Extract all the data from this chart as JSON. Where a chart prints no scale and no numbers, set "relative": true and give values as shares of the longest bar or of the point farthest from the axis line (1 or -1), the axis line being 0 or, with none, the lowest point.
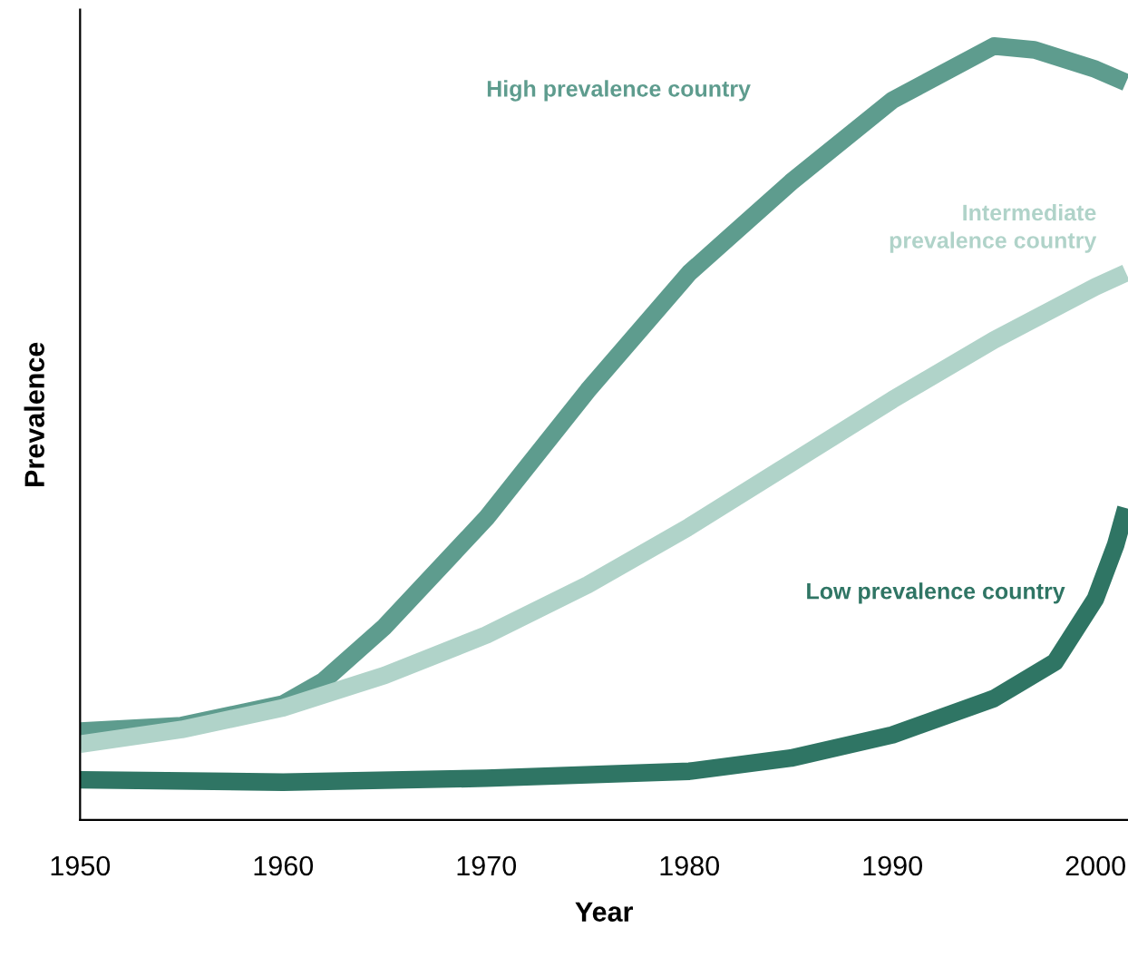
{
  "chart_data": {
    "type": "line",
    "relative": true,
    "xlabel": "Year",
    "ylabel": "Prevalence",
    "xlim": [
      1950,
      2001.6
    ],
    "xticks": [
      1950,
      1960,
      1970,
      1980,
      1990,
      2000
    ],
    "grid": false,
    "legend": false,
    "marker": "none",
    "line_style": "solid",
    "series": [
      {
        "name": "High prevalence country",
        "color": "#5e9c8e",
        "x": [
          1950,
          1955,
          1960,
          1962,
          1965,
          1970,
          1975,
          1980,
          1985,
          1990,
          1995,
          1997,
          2000,
          2001.5
        ],
        "values": [
          0.115,
          0.122,
          0.15,
          0.18,
          0.25,
          0.39,
          0.555,
          0.707,
          0.824,
          0.93,
          1,
          0.995,
          0.97,
          0.953
        ]
      },
      {
        "name": "Intermediate prevalence country",
        "color": "#b0d3c9",
        "x": [
          1950,
          1955,
          1960,
          1965,
          1970,
          1975,
          1980,
          1985,
          1990,
          1995,
          2000,
          2001.5
        ],
        "values": [
          0.098,
          0.117,
          0.145,
          0.187,
          0.239,
          0.304,
          0.379,
          0.461,
          0.543,
          0.62,
          0.689,
          0.707
        ]
      },
      {
        "name": "Low prevalence country",
        "color": "#2f7564",
        "x": [
          1950,
          1960,
          1970,
          1980,
          1985,
          1990,
          1995,
          1998,
          2000,
          2001,
          2001.5
        ],
        "values": [
          0.052,
          0.049,
          0.054,
          0.063,
          0.08,
          0.11,
          0.157,
          0.204,
          0.286,
          0.356,
          0.403
        ]
      }
    ]
  }
}
